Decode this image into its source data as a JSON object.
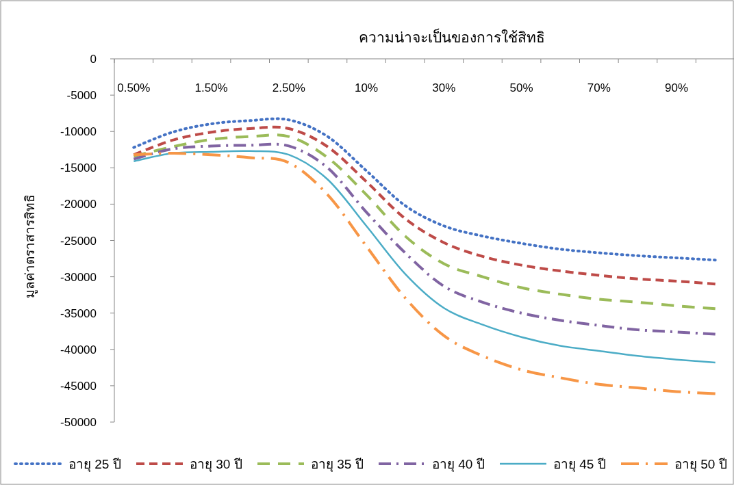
{
  "chart_data": {
    "type": "line",
    "title": "ความน่าจะเป็นของการใช้สิทธิ",
    "ylabel": "มูลค่าตราสารสิทธิ",
    "categories": [
      "0.50%",
      null,
      "1.50%",
      null,
      "2.50%",
      null,
      "10%",
      null,
      "30%",
      null,
      "50%",
      null,
      "70%",
      null,
      "90%",
      null
    ],
    "ylim": [
      -50000,
      0
    ],
    "yticks": [
      0,
      -5000,
      -10000,
      -15000,
      -20000,
      -25000,
      -30000,
      -35000,
      -40000,
      -45000,
      -50000
    ],
    "grid": false,
    "legend": "bottom",
    "series": [
      {
        "name": "อายุ 25 ปี",
        "color": "#4472c4",
        "line_style": "dotted",
        "values": [
          -12200,
          -10100,
          -8950,
          -8500,
          -8400,
          -10700,
          -15400,
          -20200,
          -23000,
          -24400,
          -25400,
          -26200,
          -26700,
          -27100,
          -27400,
          -27700
        ]
      },
      {
        "name": "อายุ 30 ปี",
        "color": "#be4b48",
        "line_style": "dashed",
        "values": [
          -13200,
          -11200,
          -10100,
          -9600,
          -9600,
          -12100,
          -16900,
          -22000,
          -25300,
          -27200,
          -28400,
          -29200,
          -29800,
          -30300,
          -30600,
          -31000
        ]
      },
      {
        "name": "อายุ 35 ปี",
        "color": "#9bbb59",
        "line_style": "longdash",
        "values": [
          -13400,
          -12100,
          -11100,
          -10700,
          -10700,
          -13600,
          -18700,
          -24400,
          -28200,
          -30000,
          -31500,
          -32400,
          -33100,
          -33500,
          -34000,
          -34400
        ]
      },
      {
        "name": "อายุ 40 ปี",
        "color": "#8064a2",
        "line_style": "dashdot",
        "values": [
          -13800,
          -12400,
          -12000,
          -11900,
          -12000,
          -15000,
          -21100,
          -26700,
          -31300,
          -33500,
          -35000,
          -36000,
          -36700,
          -37300,
          -37600,
          -37900
        ]
      },
      {
        "name": "อายุ 45 ปี",
        "color": "#4bacc6",
        "line_style": "solid",
        "values": [
          -14100,
          -13000,
          -12800,
          -12700,
          -13200,
          -16600,
          -23000,
          -29600,
          -34300,
          -36600,
          -38300,
          -39500,
          -40200,
          -40900,
          -41400,
          -41800
        ]
      },
      {
        "name": "อายุ 50 ปี",
        "color": "#f79646",
        "line_style": "longdashdot",
        "values": [
          -13200,
          -13000,
          -13200,
          -13600,
          -14300,
          -18700,
          -25800,
          -32900,
          -38100,
          -40900,
          -42800,
          -43900,
          -44800,
          -45300,
          -45800,
          -46100
        ]
      }
    ]
  }
}
